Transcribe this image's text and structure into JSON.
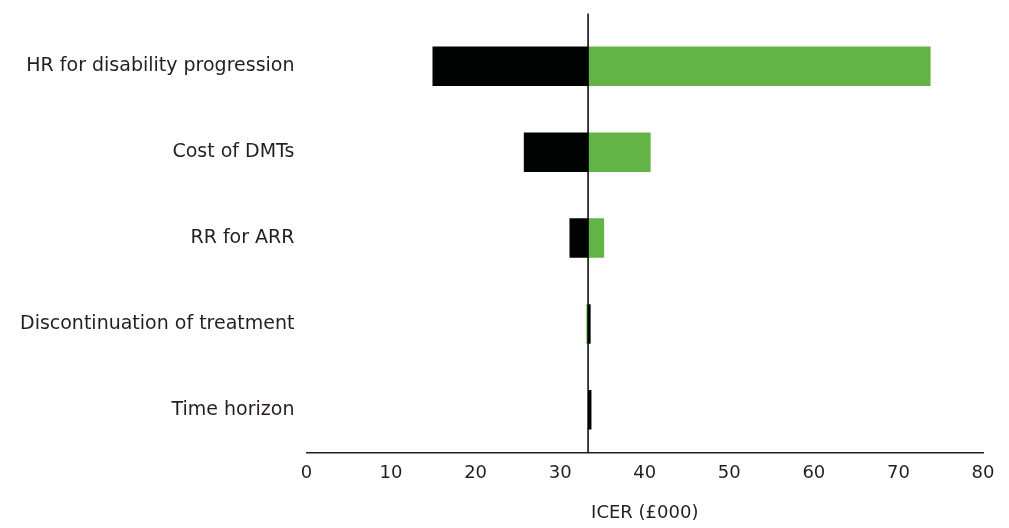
{
  "chart_data": {
    "type": "bar",
    "orientation": "horizontal",
    "xlabel": "ICER (£000)",
    "categories": [
      "HR for disability progression",
      "Cost of DMTs",
      "RR for ARR",
      "Discontinuation of treatment",
      "Time horizon"
    ],
    "series": [
      {
        "color": "#020303",
        "base": [
          14.9,
          25.7,
          31.1,
          33.3,
          33.3
        ],
        "values": [
          18.4,
          7.6,
          2.2,
          0.3,
          0.4
        ]
      },
      {
        "color": "#63b346",
        "base": [
          33.3,
          33.3,
          33.3,
          33.1,
          null
        ],
        "values": [
          40.5,
          7.4,
          1.9,
          0.2,
          null
        ]
      }
    ],
    "xlim": [
      0,
      80
    ],
    "xticks": [
      0,
      10,
      20,
      30,
      40,
      50,
      60,
      70,
      80
    ],
    "ref_lines": [
      {
        "axis": "x",
        "value": 33.3,
        "color": "#000000"
      }
    ],
    "grid": false,
    "legend": false
  }
}
